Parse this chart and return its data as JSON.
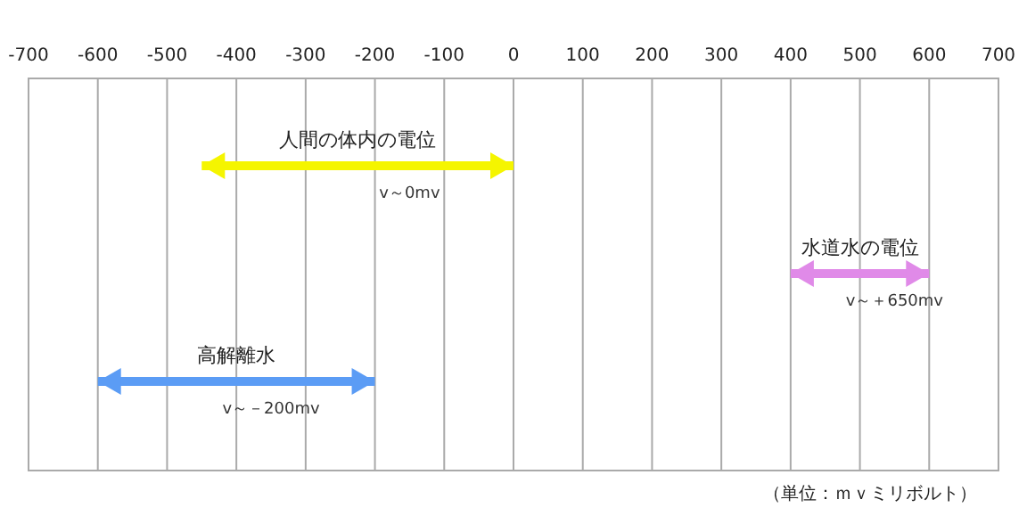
{
  "chart_data": {
    "type": "bar",
    "orientation": "horizontal",
    "categories": [
      "人間の体内の電位",
      "水道水の電位",
      "高解離水"
    ],
    "base": [
      -450,
      400,
      -600
    ],
    "values": [
      450,
      200,
      400
    ],
    "colors": [
      "#f5f500",
      "#e08ae8",
      "#5b9cf5"
    ],
    "xlim": [
      -700,
      700
    ],
    "xticks": [
      -700,
      -600,
      -500,
      -400,
      -300,
      -200,
      -100,
      0,
      100,
      200,
      300,
      400,
      500,
      600,
      700
    ],
    "grid": "x",
    "annotations": [
      {
        "text": "v～0mv",
        "x": -150,
        "y": "人間の体内の電位"
      },
      {
        "text": "v～＋650mv",
        "x": 550,
        "y": "水道水の電位"
      },
      {
        "text": "v～－200mv",
        "x": -350,
        "y": "高解離水"
      },
      "（単位：ｍｖミリボルト）"
    ]
  }
}
